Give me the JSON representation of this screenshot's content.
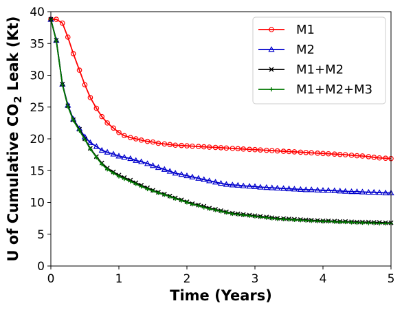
{
  "chart_data": {
    "type": "line",
    "xlabel": "Time (Years)",
    "ylabel": {
      "prefix": "U of Cumulative CO",
      "subscript": "2",
      "suffix": " Leak (Kt)"
    },
    "xlim": [
      0,
      5
    ],
    "ylim": [
      0,
      40
    ],
    "xticks": [
      "0",
      "1",
      "2",
      "3",
      "4",
      "5"
    ],
    "yticks": [
      "0",
      "5",
      "10",
      "15",
      "20",
      "25",
      "30",
      "35",
      "40"
    ],
    "grid": false,
    "legend_position": "top-right",
    "x": [
      0,
      0.08,
      0.17,
      0.25,
      0.33,
      0.42,
      0.5,
      0.58,
      0.67,
      0.75,
      0.83,
      0.92,
      1.0,
      1.08,
      1.17,
      1.25,
      1.33,
      1.42,
      1.5,
      1.58,
      1.67,
      1.75,
      1.83,
      1.92,
      2.0,
      2.08,
      2.17,
      2.25,
      2.33,
      2.42,
      2.5,
      2.58,
      2.67,
      2.75,
      2.83,
      2.92,
      3.0,
      3.08,
      3.17,
      3.25,
      3.33,
      3.42,
      3.5,
      3.58,
      3.67,
      3.75,
      3.83,
      3.92,
      4.0,
      4.08,
      4.17,
      4.25,
      4.33,
      4.42,
      4.5,
      4.58,
      4.67,
      4.75,
      4.83,
      4.92,
      5.0
    ],
    "series": [
      {
        "name": "M1",
        "color": "#ff0000",
        "marker": "circle",
        "values": [
          38.8,
          38.8,
          38.2,
          36.0,
          33.4,
          30.8,
          28.5,
          26.5,
          24.8,
          23.5,
          22.5,
          21.7,
          21.0,
          20.5,
          20.2,
          20.0,
          19.8,
          19.6,
          19.5,
          19.3,
          19.2,
          19.1,
          19.0,
          18.95,
          18.9,
          18.85,
          18.8,
          18.75,
          18.7,
          18.65,
          18.6,
          18.55,
          18.5,
          18.45,
          18.4,
          18.35,
          18.3,
          18.25,
          18.2,
          18.15,
          18.1,
          18.05,
          18.0,
          17.95,
          17.9,
          17.85,
          17.8,
          17.75,
          17.7,
          17.65,
          17.6,
          17.55,
          17.5,
          17.42,
          17.35,
          17.3,
          17.2,
          17.1,
          17.0,
          16.95,
          16.9
        ]
      },
      {
        "name": "M2",
        "color": "#0000cc",
        "marker": "triangle",
        "values": [
          38.8,
          35.5,
          28.6,
          25.3,
          23.1,
          21.6,
          20.3,
          19.4,
          18.8,
          18.2,
          17.9,
          17.6,
          17.3,
          17.1,
          16.9,
          16.6,
          16.4,
          16.1,
          15.8,
          15.5,
          15.2,
          14.9,
          14.6,
          14.4,
          14.2,
          14.0,
          13.8,
          13.6,
          13.4,
          13.2,
          13.0,
          12.85,
          12.75,
          12.7,
          12.6,
          12.55,
          12.5,
          12.4,
          12.35,
          12.3,
          12.25,
          12.2,
          12.15,
          12.1,
          12.05,
          12.0,
          12.0,
          11.95,
          11.9,
          11.9,
          11.85,
          11.8,
          11.75,
          11.7,
          11.7,
          11.65,
          11.6,
          11.6,
          11.55,
          11.5,
          11.5
        ]
      },
      {
        "name": "M1+M2",
        "color": "#000000",
        "marker": "x",
        "values": [
          38.8,
          35.5,
          28.6,
          25.2,
          23.0,
          21.5,
          20.0,
          18.5,
          17.2,
          16.2,
          15.4,
          14.8,
          14.3,
          13.9,
          13.5,
          13.1,
          12.7,
          12.3,
          11.9,
          11.6,
          11.3,
          11.0,
          10.7,
          10.4,
          10.1,
          9.8,
          9.6,
          9.4,
          9.1,
          8.9,
          8.7,
          8.5,
          8.3,
          8.2,
          8.1,
          8.0,
          7.9,
          7.8,
          7.7,
          7.6,
          7.5,
          7.45,
          7.4,
          7.35,
          7.3,
          7.25,
          7.2,
          7.15,
          7.1,
          7.1,
          7.05,
          7.0,
          7.0,
          6.95,
          6.9,
          6.9,
          6.9,
          6.85,
          6.85,
          6.8,
          6.8
        ]
      },
      {
        "name": "M1+M2+M3",
        "color": "#007700",
        "marker": "plus",
        "values": [
          38.8,
          35.4,
          28.5,
          25.1,
          22.9,
          21.3,
          19.9,
          18.4,
          17.1,
          16.0,
          15.2,
          14.6,
          14.1,
          13.7,
          13.3,
          12.9,
          12.5,
          12.1,
          11.8,
          11.5,
          11.2,
          10.9,
          10.6,
          10.3,
          10.0,
          9.7,
          9.5,
          9.2,
          9.0,
          8.8,
          8.6,
          8.4,
          8.2,
          8.1,
          8.0,
          7.9,
          7.8,
          7.7,
          7.6,
          7.5,
          7.4,
          7.35,
          7.3,
          7.25,
          7.2,
          7.15,
          7.1,
          7.05,
          7.0,
          7.0,
          6.95,
          6.9,
          6.9,
          6.85,
          6.8,
          6.8,
          6.75,
          6.75,
          6.7,
          6.7,
          6.7
        ]
      }
    ]
  }
}
